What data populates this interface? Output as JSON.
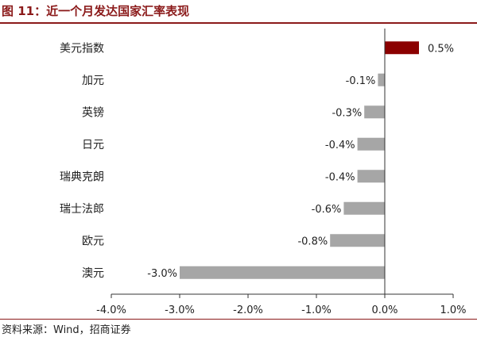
{
  "header": {
    "title": "图 11：近一个月发达国家汇率表现"
  },
  "footer": {
    "source": "资料来源：Wind，招商证券"
  },
  "colors": {
    "title": "#8B1A1A",
    "positive_bar": "#8B0000",
    "negative_bar": "#A6A6A6",
    "axis": "#333333"
  },
  "chart_data": {
    "type": "bar",
    "orientation": "horizontal",
    "categories": [
      "美元指数",
      "加元",
      "英镑",
      "日元",
      "瑞典克朗",
      "瑞士法郎",
      "欧元",
      "澳元"
    ],
    "values": [
      0.5,
      -0.1,
      -0.3,
      -0.4,
      -0.4,
      -0.6,
      -0.8,
      -3.0
    ],
    "data_labels": [
      "0.5%",
      "-0.1%",
      "-0.3%",
      "-0.4%",
      "-0.4%",
      "-0.6%",
      "-0.8%",
      "-3.0%"
    ],
    "x_ticks": [
      -4.0,
      -3.0,
      -2.0,
      -1.0,
      0.0,
      1.0
    ],
    "x_tick_labels": [
      "-4.0%",
      "-3.0%",
      "-2.0%",
      "-1.0%",
      "0.0%",
      "1.0%"
    ],
    "xlim": [
      -4.0,
      1.0
    ],
    "grid": false,
    "legend": "none"
  }
}
